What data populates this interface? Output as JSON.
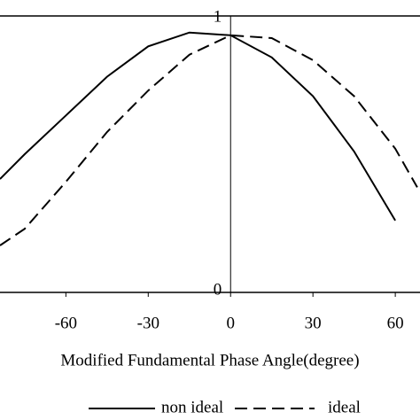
{
  "chart_data": {
    "type": "line",
    "x_label": "Modified Fundamental Phase Angle(degree)",
    "xlim": [
      -84,
      69
    ],
    "ylim": [
      0,
      1
    ],
    "xticks": [
      -60,
      -30,
      0,
      30,
      60
    ],
    "yticks": [
      0,
      1
    ],
    "legend": "bottom",
    "series": [
      {
        "name": "non ideal",
        "color": "#000000",
        "dash": "solid",
        "x": [
          -84,
          -75,
          -60,
          -45,
          -30,
          -15,
          0,
          15,
          30,
          45,
          60
        ],
        "values": [
          0.41,
          0.5,
          0.64,
          0.78,
          0.89,
          0.94,
          0.93,
          0.85,
          0.71,
          0.51,
          0.26
        ]
      },
      {
        "name": "ideal",
        "color": "#000000",
        "dash": "dashed",
        "x": [
          -84,
          -75,
          -60,
          -45,
          -30,
          -15,
          0,
          15,
          30,
          45,
          60,
          68
        ],
        "values": [
          0.17,
          0.23,
          0.4,
          0.58,
          0.73,
          0.86,
          0.93,
          0.92,
          0.84,
          0.71,
          0.52,
          0.38
        ]
      }
    ]
  }
}
